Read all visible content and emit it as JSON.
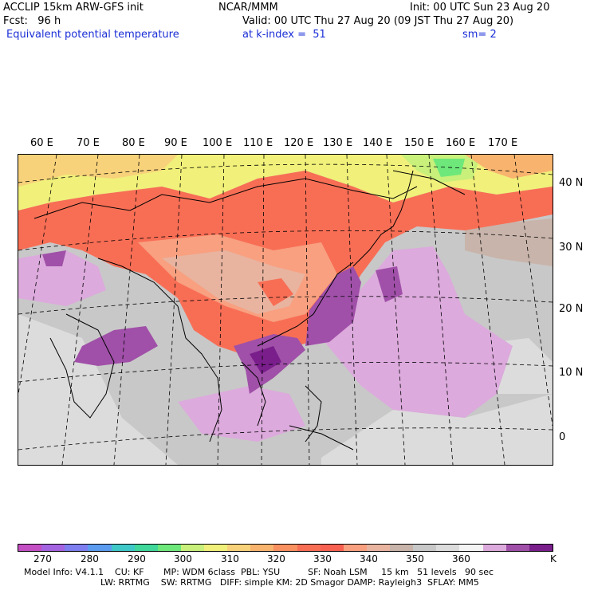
{
  "header": {
    "line1_left": "ACCLIP 15km ARW-GFS init",
    "line1_mid": "NCAR/MMM",
    "line1_right": "Init: 00 UTC Sun 23 Aug 20",
    "line2_left": "Fcst:   96 h",
    "line2_right": "Valid: 00 UTC Thu 27 Aug 20 (09 JST Thu 27 Aug 20)",
    "line3_left": "Equivalent potential temperature",
    "line3_mid": "at k-index =  51",
    "line3_right": "sm= 2"
  },
  "map": {
    "lon_labels": [
      "60 E",
      "70 E",
      "80 E",
      "90 E",
      "100 E",
      "110 E",
      "120 E",
      "130 E",
      "140 E",
      "150 E",
      "160 E",
      "170 E"
    ],
    "lat_labels": [
      "40 N",
      "30 N",
      "20 N",
      "10 N",
      "0"
    ]
  },
  "colorbar": {
    "labels": [
      "270",
      "280",
      "290",
      "300",
      "310",
      "320",
      "330",
      "340",
      "350",
      "360",
      "K"
    ],
    "colors": [
      "#c44ec4",
      "#a463e0",
      "#7e7ef0",
      "#5c9cf0",
      "#3fc8c8",
      "#3fd79a",
      "#6ee87a",
      "#c8f07a",
      "#f0f07a",
      "#f8d27a",
      "#f8b46e",
      "#f89060",
      "#f86e55",
      "#f86050",
      "#f8a080",
      "#e8b4a0",
      "#c8b4aa",
      "#c8c8c8",
      "#dcdcdc",
      "#f4f4f4",
      "#dcaadc",
      "#a050a8",
      "#7a1e8c"
    ]
  },
  "footer": {
    "line1": "Model Info: V4.1.1    CU: KF       MP: WDM 6class  PBL: YSU          SF: Noah LSM     15 km   51 levels   90 sec",
    "line2": "LW: RRTMG    SW: RRTMG   DIFF: simple KM: 2D Smagor DAMP: Rayleigh3  SFLAY: MM5"
  }
}
